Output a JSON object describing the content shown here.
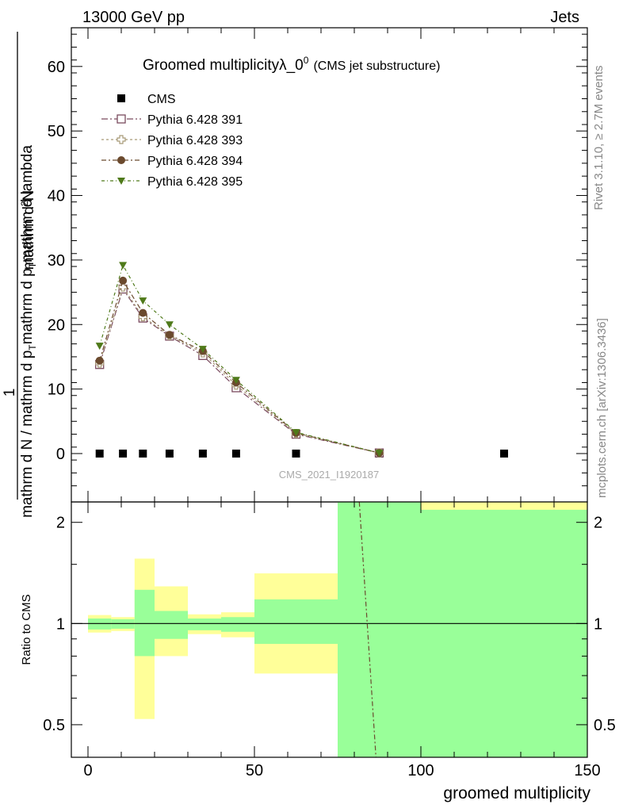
{
  "header": {
    "left": "13000 GeV pp",
    "right": "Jets"
  },
  "title": {
    "main": "Groomed multiplicity",
    "lambda": "λ_0",
    "lambda_sup": "0",
    "sub": "(CMS jet substructure)"
  },
  "analysis_id": "CMS_2021_I1920187",
  "side_text": {
    "rivet": "Rivet 3.1.10, ≥ 2.7M events",
    "mcplots": "mcplots.cern.ch [arXiv:1306.3436]"
  },
  "y_label_main": {
    "numerator": "mathrm d",
    "numerator_sup": "2",
    "numerator_tail": "N",
    "one": "1",
    "denominator": "mathrm d N / mathrm d p",
    "denominator_sub": "T",
    "denominator_tail": "mathrm d p",
    "denominator_tail_sub": "T",
    "denominator_end": "mathrm d lambda"
  },
  "y_label_ratio": "Ratio to CMS",
  "x_label": "groomed multiplicity",
  "colors": {
    "cms": "#000000",
    "py391": "#7a4a5e",
    "py393": "#a89a78",
    "py394": "#6b4a2e",
    "py395": "#4f7a1a",
    "band_green": "#99ff99",
    "band_yellow": "#ffff99"
  },
  "chart_data": [
    {
      "type": "scatter",
      "panel": "main",
      "x_range": [
        -5,
        150
      ],
      "ylim": [
        -7.5,
        66
      ],
      "y_ticks": [
        0,
        10,
        20,
        30,
        40,
        50,
        60
      ],
      "legend_position": "top-left",
      "series": [
        {
          "name": "CMS",
          "marker": "square-filled",
          "x": [
            3.5,
            10.5,
            16.5,
            24.5,
            34.5,
            44.5,
            62.5,
            87.5,
            125
          ],
          "y": [
            0,
            0,
            0,
            0,
            0,
            0,
            0,
            0,
            0
          ]
        },
        {
          "name": "Pythia 6.428 391",
          "marker": "square-open",
          "x": [
            3.5,
            10.5,
            16.5,
            24.5,
            34.5,
            44.5,
            62.5,
            87.5
          ],
          "y": [
            13.8,
            25.5,
            21.0,
            18.2,
            15.2,
            10.2,
            3.0,
            0.1
          ]
        },
        {
          "name": "Pythia 6.428 393",
          "marker": "cross-open",
          "x": [
            3.5,
            10.5,
            16.5,
            24.5,
            34.5,
            44.5,
            62.5,
            87.5
          ],
          "y": [
            14.0,
            25.8,
            21.2,
            18.3,
            15.6,
            10.6,
            3.1,
            0.1
          ]
        },
        {
          "name": "Pythia 6.428 394",
          "marker": "circle-filled",
          "x": [
            3.5,
            10.5,
            16.5,
            24.5,
            34.5,
            44.5,
            62.5,
            87.5
          ],
          "y": [
            14.4,
            26.8,
            21.8,
            18.4,
            15.9,
            11.0,
            3.2,
            0.1
          ]
        },
        {
          "name": "Pythia 6.428 395",
          "marker": "triangle-down-filled",
          "x": [
            3.5,
            10.5,
            16.5,
            24.5,
            34.5,
            44.5,
            62.5,
            87.5
          ],
          "y": [
            16.7,
            29.2,
            23.7,
            20.0,
            16.2,
            11.4,
            3.3,
            0.1
          ]
        }
      ]
    },
    {
      "type": "area",
      "panel": "ratio",
      "x_range": [
        -5,
        150
      ],
      "y_scale": "log",
      "ylim": [
        0.4,
        2.3
      ],
      "y_ticks": [
        0.5,
        1,
        2
      ],
      "bins": [
        {
          "lo": 0,
          "hi": 7,
          "green": [
            0.96,
            1.035
          ],
          "yellow": [
            0.94,
            1.06
          ]
        },
        {
          "lo": 7,
          "hi": 14,
          "green": [
            0.965,
            1.03
          ],
          "yellow": [
            0.95,
            1.045
          ]
        },
        {
          "lo": 14,
          "hi": 20,
          "green": [
            0.8,
            1.26
          ],
          "yellow": [
            0.52,
            1.56
          ]
        },
        {
          "lo": 20,
          "hi": 30,
          "green": [
            0.9,
            1.09
          ],
          "yellow": [
            0.8,
            1.29
          ]
        },
        {
          "lo": 30,
          "hi": 40,
          "green": [
            0.955,
            1.035
          ],
          "yellow": [
            0.93,
            1.065
          ]
        },
        {
          "lo": 40,
          "hi": 50,
          "green": [
            0.945,
            1.045
          ],
          "yellow": [
            0.91,
            1.08
          ]
        },
        {
          "lo": 50,
          "hi": 75,
          "green": [
            0.87,
            1.18
          ],
          "yellow": [
            0.71,
            1.41
          ]
        },
        {
          "lo": 75,
          "hi": 100,
          "green": [
            0.38,
            2.5
          ],
          "yellow": [
            0.38,
            2.5
          ]
        },
        {
          "lo": 100,
          "hi": 150,
          "green": [
            0.38,
            2.18
          ],
          "yellow": [
            0.38,
            2.5
          ]
        }
      ],
      "reference_line": 1,
      "dash_line": {
        "x": [
          81.5,
          86.5
        ],
        "y": [
          2.5,
          0.38
        ]
      }
    }
  ],
  "x_ticks": [
    0,
    50,
    100,
    150
  ]
}
